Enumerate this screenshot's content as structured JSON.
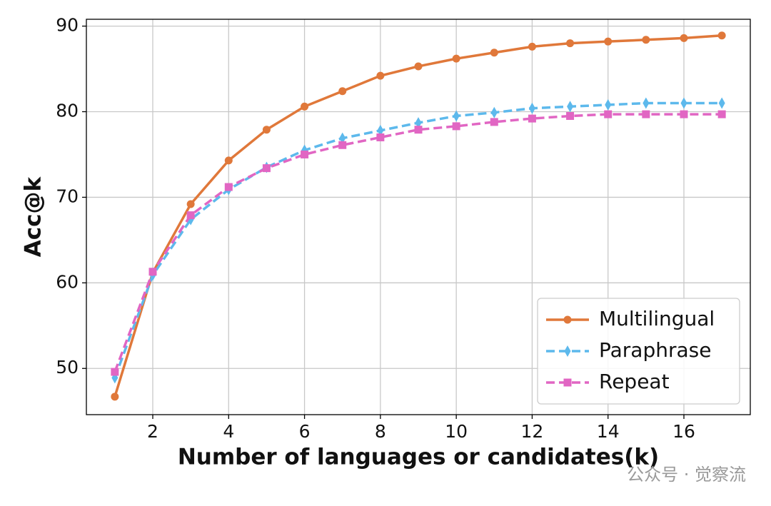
{
  "chart_data": {
    "type": "line",
    "x_label": "Number of languages or candidates(k)",
    "y_label": "Acc@k",
    "x": [
      1,
      2,
      3,
      4,
      5,
      6,
      7,
      8,
      9,
      10,
      11,
      12,
      13,
      14,
      15,
      16,
      17
    ],
    "series": [
      {
        "name": "Multilingual",
        "color": "#e0783a",
        "dash": false,
        "marker": "circle",
        "values": [
          46.7,
          61.2,
          69.2,
          74.3,
          77.9,
          80.6,
          82.4,
          84.2,
          85.3,
          86.2,
          86.9,
          87.6,
          88.0,
          88.2,
          88.4,
          88.6,
          88.9
        ]
      },
      {
        "name": "Paraphrase",
        "color": "#5db9ec",
        "dash": true,
        "marker": "diamond",
        "values": [
          48.9,
          60.9,
          67.4,
          70.9,
          73.5,
          75.5,
          76.9,
          77.8,
          78.7,
          79.5,
          79.9,
          80.4,
          80.6,
          80.8,
          81.0,
          81.0,
          81.0
        ]
      },
      {
        "name": "Repeat",
        "color": "#e166c3",
        "dash": true,
        "marker": "square",
        "values": [
          49.6,
          61.3,
          67.9,
          71.2,
          73.4,
          75.0,
          76.1,
          77.0,
          77.9,
          78.3,
          78.8,
          79.2,
          79.5,
          79.7,
          79.7,
          79.7,
          79.7
        ]
      }
    ],
    "xlim": [
      0.25,
      17.75
    ],
    "ylim": [
      44.6,
      90.8
    ],
    "xticks": [
      2,
      4,
      6,
      8,
      10,
      12,
      14,
      16
    ],
    "yticks": [
      50,
      60,
      70,
      80,
      90
    ],
    "grid": true,
    "legend": "lower right",
    "watermark": "公众号 · 觉察流"
  }
}
